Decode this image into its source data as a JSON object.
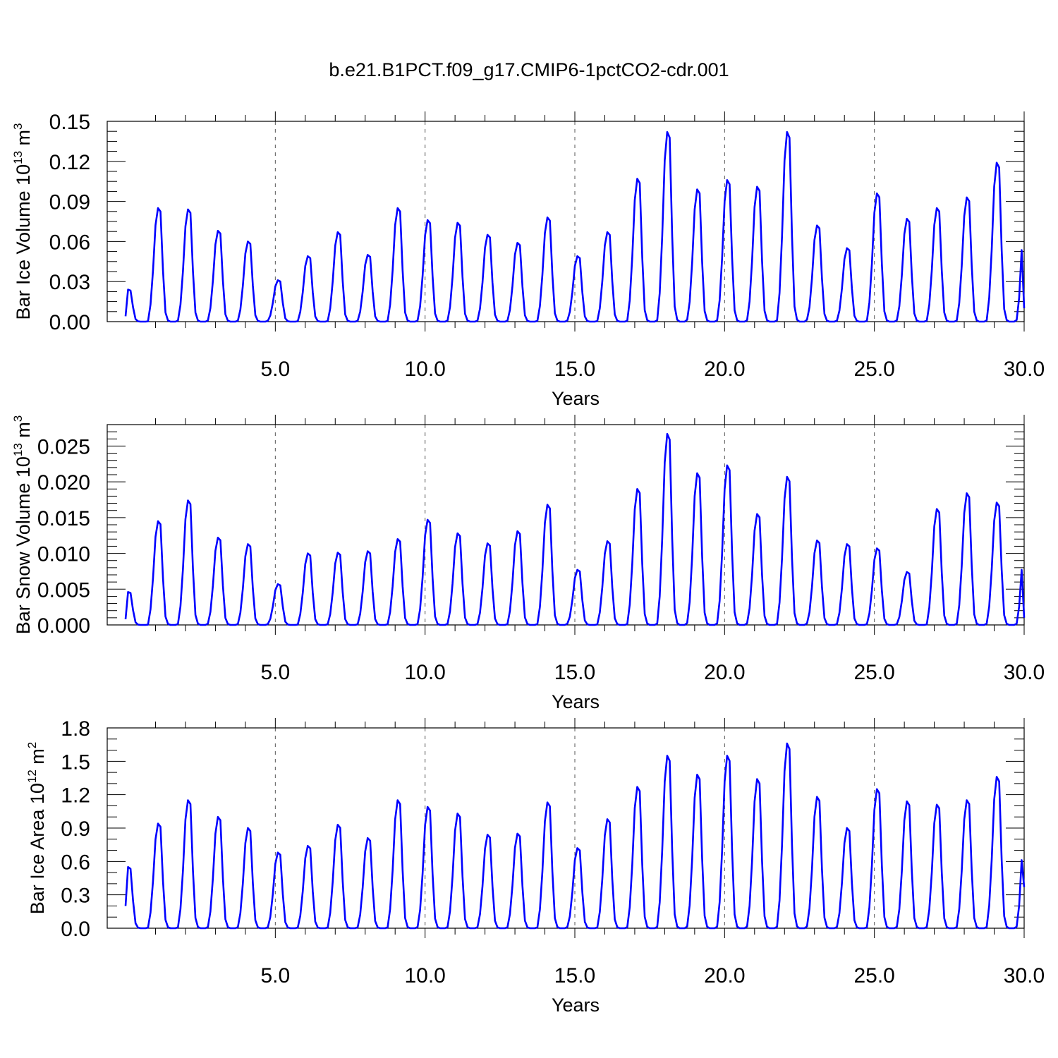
{
  "figure": {
    "title": "b.e21.B1PCT.f09_g17.CMIP6-1pctCO2-cdr.001",
    "line_color": "#0000ff",
    "grid_color": "#555555"
  },
  "chart_data": [
    {
      "type": "line",
      "id": "ice-volume",
      "ylabel_main": "Bar Ice Volume 10",
      "ylabel_exp": "13",
      "ylabel_unit": " m",
      "ylabel_unit_exp": "3",
      "xlabel": "Years",
      "xlim": [
        0,
        30
      ],
      "ylim": [
        0,
        0.15
      ],
      "x_ticks": [
        5,
        10,
        15,
        20,
        25,
        30
      ],
      "x_tick_labels": [
        "5.0",
        "10.0",
        "15.0",
        "20.0",
        "25.0",
        "30.0"
      ],
      "y_ticks": [
        0,
        0.03,
        0.06,
        0.09,
        0.12,
        0.15
      ],
      "y_tick_labels": [
        "0.00",
        "0.03",
        "0.06",
        "0.09",
        "0.12",
        "0.15"
      ],
      "y_minor_step": 0.0075,
      "grid": "vertical-dashed",
      "series": [
        {
          "peaks": [
            0.024,
            0.085,
            0.084,
            0.068,
            0.06,
            0.031,
            0.049,
            0.067,
            0.05,
            0.085,
            0.076,
            0.074,
            0.065,
            0.059,
            0.078,
            0.049,
            0.067,
            0.107,
            0.142,
            0.099,
            0.106,
            0.101,
            0.142,
            0.072,
            0.055,
            0.096,
            0.077,
            0.085,
            0.093,
            0.119
          ],
          "start_value": 0.004,
          "end_value": 0.01
        }
      ]
    },
    {
      "type": "line",
      "id": "snow-volume",
      "ylabel_main": "Bar Snow Volume 10",
      "ylabel_exp": "13",
      "ylabel_unit": " m",
      "ylabel_unit_exp": "3",
      "xlabel": "Years",
      "xlim": [
        0,
        30
      ],
      "ylim": [
        0,
        0.028
      ],
      "x_ticks": [
        5,
        10,
        15,
        20,
        25,
        30
      ],
      "x_tick_labels": [
        "5.0",
        "10.0",
        "15.0",
        "20.0",
        "25.0",
        "30.0"
      ],
      "y_ticks": [
        0,
        0.005,
        0.01,
        0.015,
        0.02,
        0.025
      ],
      "y_tick_labels": [
        "0.000",
        "0.005",
        "0.010",
        "0.015",
        "0.020",
        "0.025"
      ],
      "y_minor_step": 0.001,
      "grid": "vertical-dashed",
      "series": [
        {
          "peaks": [
            0.0046,
            0.0145,
            0.0174,
            0.0122,
            0.0113,
            0.0057,
            0.01,
            0.0101,
            0.0103,
            0.012,
            0.0147,
            0.0128,
            0.0114,
            0.0131,
            0.0168,
            0.0077,
            0.0117,
            0.019,
            0.0267,
            0.0212,
            0.0223,
            0.0155,
            0.0207,
            0.0118,
            0.0113,
            0.0107,
            0.0074,
            0.0162,
            0.0184,
            0.0171
          ],
          "start_value": 0.0008,
          "end_value": 0.001
        }
      ]
    },
    {
      "type": "line",
      "id": "ice-area",
      "ylabel_main": "Bar Ice Area 10",
      "ylabel_exp": "12",
      "ylabel_unit": " m",
      "ylabel_unit_exp": "2",
      "xlabel": "Years",
      "xlim": [
        0,
        30
      ],
      "ylim": [
        0,
        1.8
      ],
      "x_ticks": [
        5,
        10,
        15,
        20,
        25,
        30
      ],
      "x_tick_labels": [
        "5.0",
        "10.0",
        "15.0",
        "20.0",
        "25.0",
        "30.0"
      ],
      "y_ticks": [
        0,
        0.3,
        0.6,
        0.9,
        1.2,
        1.5,
        1.8
      ],
      "y_tick_labels": [
        "0.0",
        "0.3",
        "0.6",
        "0.9",
        "1.2",
        "1.5",
        "1.8"
      ],
      "y_minor_step": 0.1,
      "grid": "vertical-dashed",
      "series": [
        {
          "peaks": [
            0.55,
            0.94,
            1.15,
            1.0,
            0.9,
            0.68,
            0.74,
            0.93,
            0.81,
            1.15,
            1.09,
            1.03,
            0.84,
            0.85,
            1.13,
            0.72,
            0.98,
            1.27,
            1.55,
            1.38,
            1.55,
            1.34,
            1.66,
            1.18,
            0.9,
            1.25,
            1.14,
            1.11,
            1.15,
            1.36
          ],
          "start_value": 0.2,
          "end_value": 0.37
        }
      ]
    }
  ]
}
